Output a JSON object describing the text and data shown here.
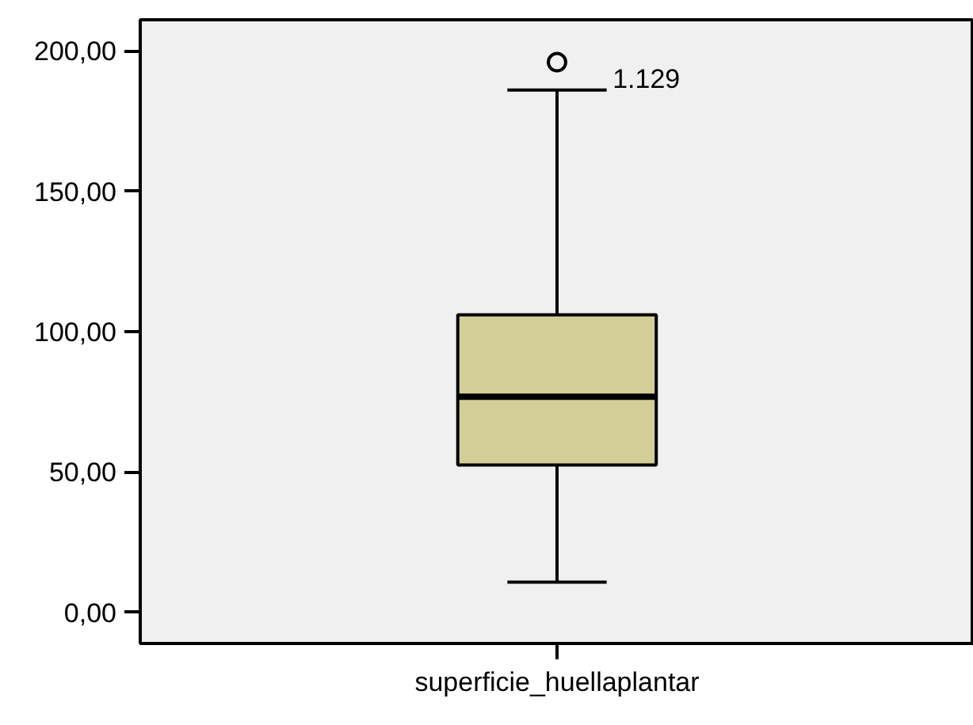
{
  "chart_data": {
    "type": "box",
    "categories": [
      "superficie_huellaplantar"
    ],
    "boxes": [
      {
        "low": 10.8,
        "q1": 52.5,
        "median": 76.8,
        "q3": 106.0,
        "high": 186.0,
        "outliers": [
          195.9
        ]
      }
    ],
    "color": "#d3ce97",
    "ylim": [
      -11,
      211
    ],
    "yticks": [
      {
        "value": 0,
        "label": "0,00"
      },
      {
        "value": 50,
        "label": "50,00"
      },
      {
        "value": 100,
        "label": "100,00"
      },
      {
        "value": 150,
        "label": "150,00"
      },
      {
        "value": 200,
        "label": "200,00"
      }
    ],
    "annotations": [
      "1.129"
    ]
  }
}
